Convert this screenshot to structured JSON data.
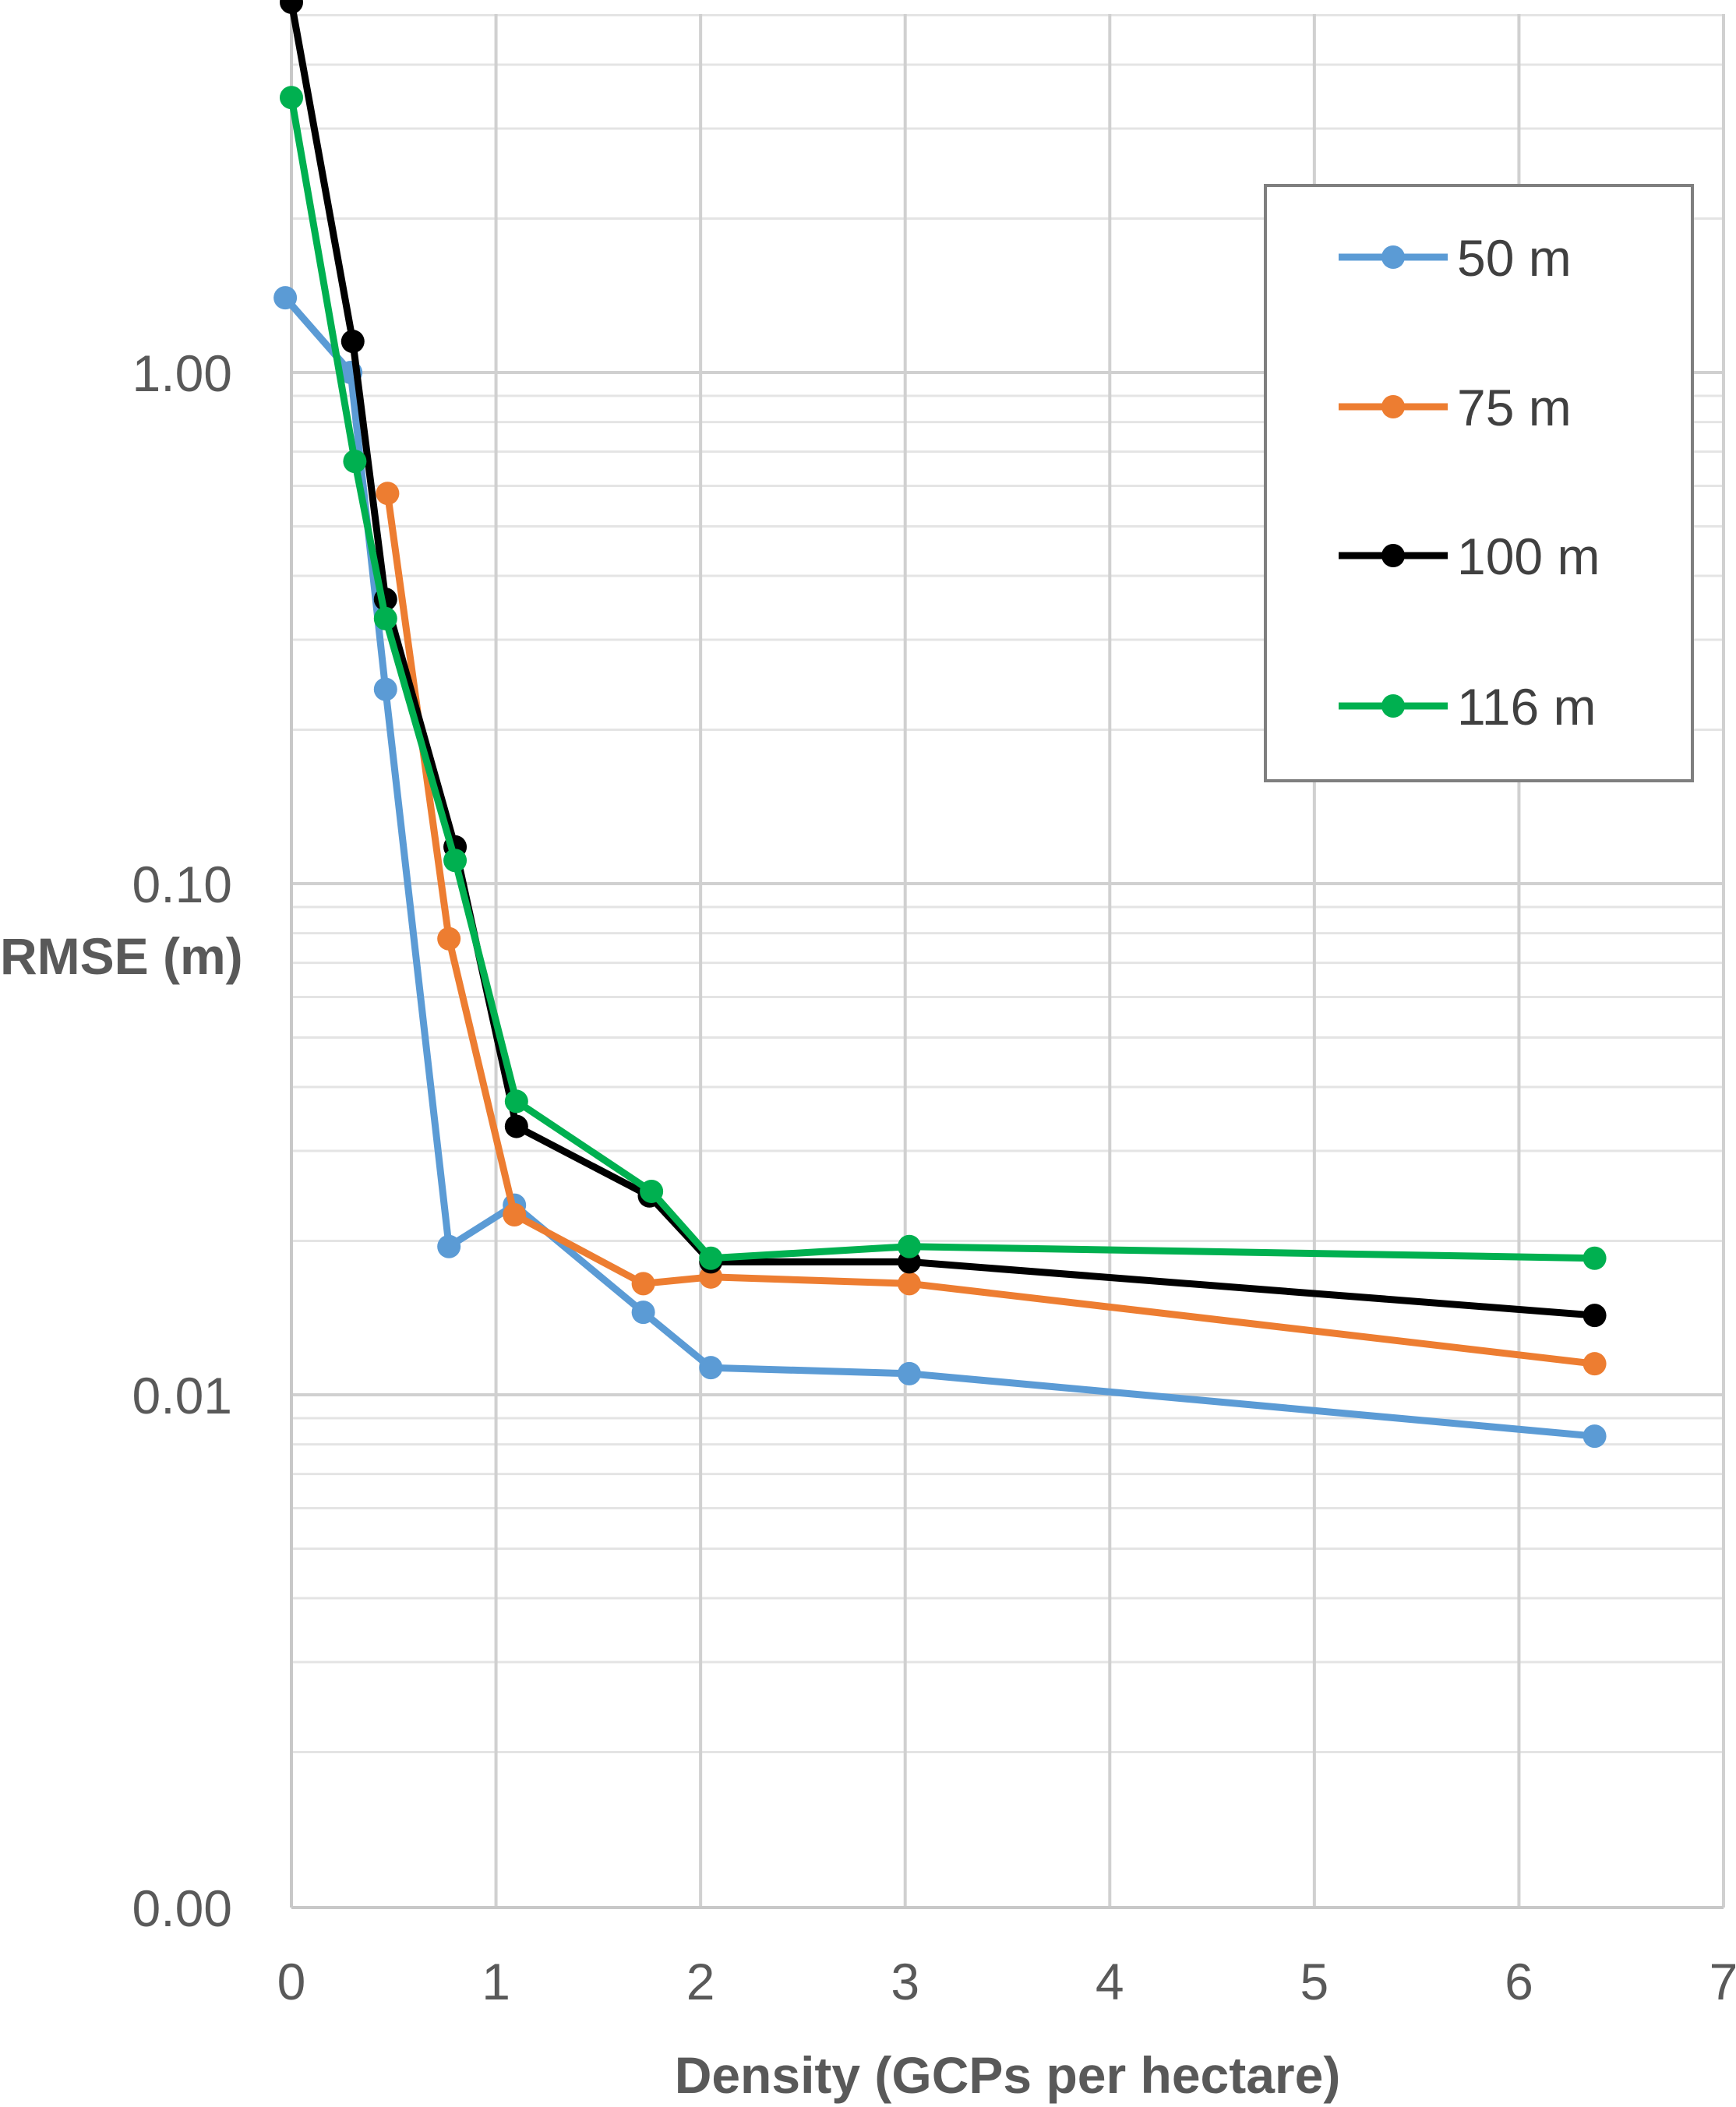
{
  "chart_data": {
    "type": "line",
    "title": "",
    "xlabel": "Density (GCPs per hectare)",
    "ylabel": "RMSE (m)",
    "x_scale": "linear",
    "y_scale": "log",
    "xlim": [
      0,
      7
    ],
    "x_ticks": [
      "0",
      "1",
      "2",
      "3",
      "4",
      "5",
      "6",
      "7"
    ],
    "y_ticks": [
      {
        "value": 0.01,
        "label": "0.01"
      },
      {
        "value": 0.1,
        "label": "0.10"
      },
      {
        "value": 1.0,
        "label": "1.00"
      },
      {
        "value": 0.001,
        "label": "0.00"
      }
    ],
    "grid": true,
    "legend_position": "top-right",
    "series": [
      {
        "name": "50 m",
        "color": "#5B9BD5",
        "points": [
          [
            -0.03,
            1.4
          ],
          [
            0.29,
            1.0
          ],
          [
            0.46,
            0.24
          ],
          [
            0.77,
            0.0195
          ],
          [
            1.09,
            0.0235
          ],
          [
            1.72,
            0.0145
          ],
          [
            2.05,
            0.0113
          ],
          [
            3.02,
            0.011
          ],
          [
            6.37,
            0.0083
          ]
        ]
      },
      {
        "name": "75 m",
        "color": "#ED7D31",
        "points": [
          [
            0.47,
            0.58
          ],
          [
            0.77,
            0.078
          ],
          [
            1.09,
            0.0225
          ],
          [
            1.72,
            0.0165
          ],
          [
            2.05,
            0.017
          ],
          [
            3.02,
            0.0165
          ],
          [
            6.37,
            0.0115
          ]
        ]
      },
      {
        "name": "100 m",
        "color": "#000000",
        "points": [
          [
            0.0,
            5.3
          ],
          [
            0.3,
            1.15
          ],
          [
            0.46,
            0.36
          ],
          [
            0.8,
            0.118
          ],
          [
            1.1,
            0.0335
          ],
          [
            1.75,
            0.0245
          ],
          [
            2.05,
            0.0182
          ],
          [
            3.02,
            0.0182
          ],
          [
            6.37,
            0.0143
          ]
        ]
      },
      {
        "name": "116 m",
        "color": "#00B050",
        "points": [
          [
            0.0,
            3.45
          ],
          [
            0.31,
            0.67
          ],
          [
            0.46,
            0.33
          ],
          [
            0.8,
            0.111
          ],
          [
            1.1,
            0.0375
          ],
          [
            1.76,
            0.025
          ],
          [
            2.05,
            0.0185
          ],
          [
            3.02,
            0.0195
          ],
          [
            6.37,
            0.0185
          ]
        ]
      }
    ]
  }
}
